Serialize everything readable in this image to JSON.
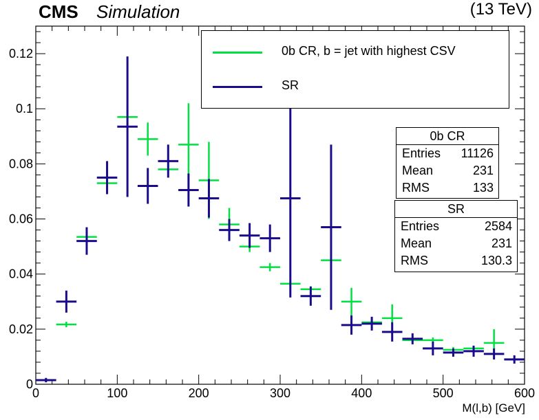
{
  "header": {
    "experiment": "CMS",
    "label": "Simulation",
    "energy": "(13 TeV)"
  },
  "chart_data": {
    "type": "scatter",
    "xlabel": "M(l,b) [GeV]",
    "ylabel": "",
    "xlim": [
      0,
      600
    ],
    "ylim": [
      0,
      0.13
    ],
    "bin_width": 25,
    "xticks": [
      0,
      100,
      200,
      300,
      400,
      500,
      600
    ],
    "yticks": [
      0,
      0.02,
      0.04,
      0.06,
      0.08,
      0.1,
      0.12
    ],
    "ytick_labels": [
      "0",
      "0.02",
      "0.04",
      "0.06",
      "0.08",
      "0.1",
      "0.12"
    ],
    "xtick_labels": [
      "0",
      "100",
      "200",
      "300",
      "400",
      "500",
      "600"
    ],
    "grid": false,
    "legend_position": "top-right",
    "series": [
      {
        "name": "0b CR, b = jet with highest CSV",
        "color": "#00e040",
        "x": [
          12.5,
          37.5,
          62.5,
          87.5,
          112.5,
          137.5,
          162.5,
          187.5,
          212.5,
          237.5,
          262.5,
          287.5,
          312.5,
          337.5,
          362.5,
          387.5,
          412.5,
          437.5,
          462.5,
          487.5,
          512.5,
          537.5,
          562.5,
          587.5
        ],
        "y": [
          0.0015,
          0.0217,
          0.0535,
          0.073,
          0.097,
          0.089,
          0.078,
          0.087,
          0.074,
          0.058,
          0.05,
          0.0425,
          0.0365,
          0.0345,
          0.045,
          0.03,
          0.0225,
          0.024,
          0.016,
          0.016,
          0.0125,
          0.013,
          0.015,
          0.009
        ],
        "yerr": [
          0.0005,
          0.001,
          0.002,
          0.002,
          0.003,
          0.006,
          0.003,
          0.015,
          0.014,
          0.006,
          0.002,
          0.0015,
          0.001,
          0.001,
          0.001,
          0.005,
          0.001,
          0.005,
          0.001,
          0.001,
          0.001,
          0.001,
          0.005,
          0.0005
        ]
      },
      {
        "name": "SR",
        "color": "#1a0b8c",
        "x": [
          12.5,
          37.5,
          62.5,
          87.5,
          112.5,
          137.5,
          162.5,
          187.5,
          212.5,
          237.5,
          262.5,
          287.5,
          312.5,
          337.5,
          362.5,
          387.5,
          412.5,
          437.5,
          462.5,
          487.5,
          512.5,
          537.5,
          562.5,
          587.5
        ],
        "y": [
          0.0015,
          0.03,
          0.052,
          0.075,
          0.0935,
          0.072,
          0.081,
          0.0705,
          0.0675,
          0.056,
          0.054,
          0.053,
          0.0675,
          0.032,
          0.057,
          0.0215,
          0.022,
          0.019,
          0.0165,
          0.013,
          0.0115,
          0.012,
          0.011,
          0.009
        ],
        "yerr": [
          0.0008,
          0.004,
          0.005,
          0.006,
          0.0255,
          0.0065,
          0.006,
          0.006,
          0.007,
          0.004,
          0.0045,
          0.005,
          0.036,
          0.0035,
          0.03,
          0.0035,
          0.0025,
          0.0035,
          0.002,
          0.0025,
          0.0015,
          0.002,
          0.002,
          0.0015
        ]
      }
    ]
  },
  "stats": [
    {
      "title": "0b CR",
      "rows": [
        {
          "key": "Entries",
          "value": "11126"
        },
        {
          "key": "Mean",
          "value": "231"
        },
        {
          "key": "RMS",
          "value": "133"
        }
      ]
    },
    {
      "title": "SR",
      "rows": [
        {
          "key": "Entries",
          "value": "2584"
        },
        {
          "key": "Mean",
          "value": "231"
        },
        {
          "key": "RMS",
          "value": "130.3"
        }
      ]
    }
  ]
}
